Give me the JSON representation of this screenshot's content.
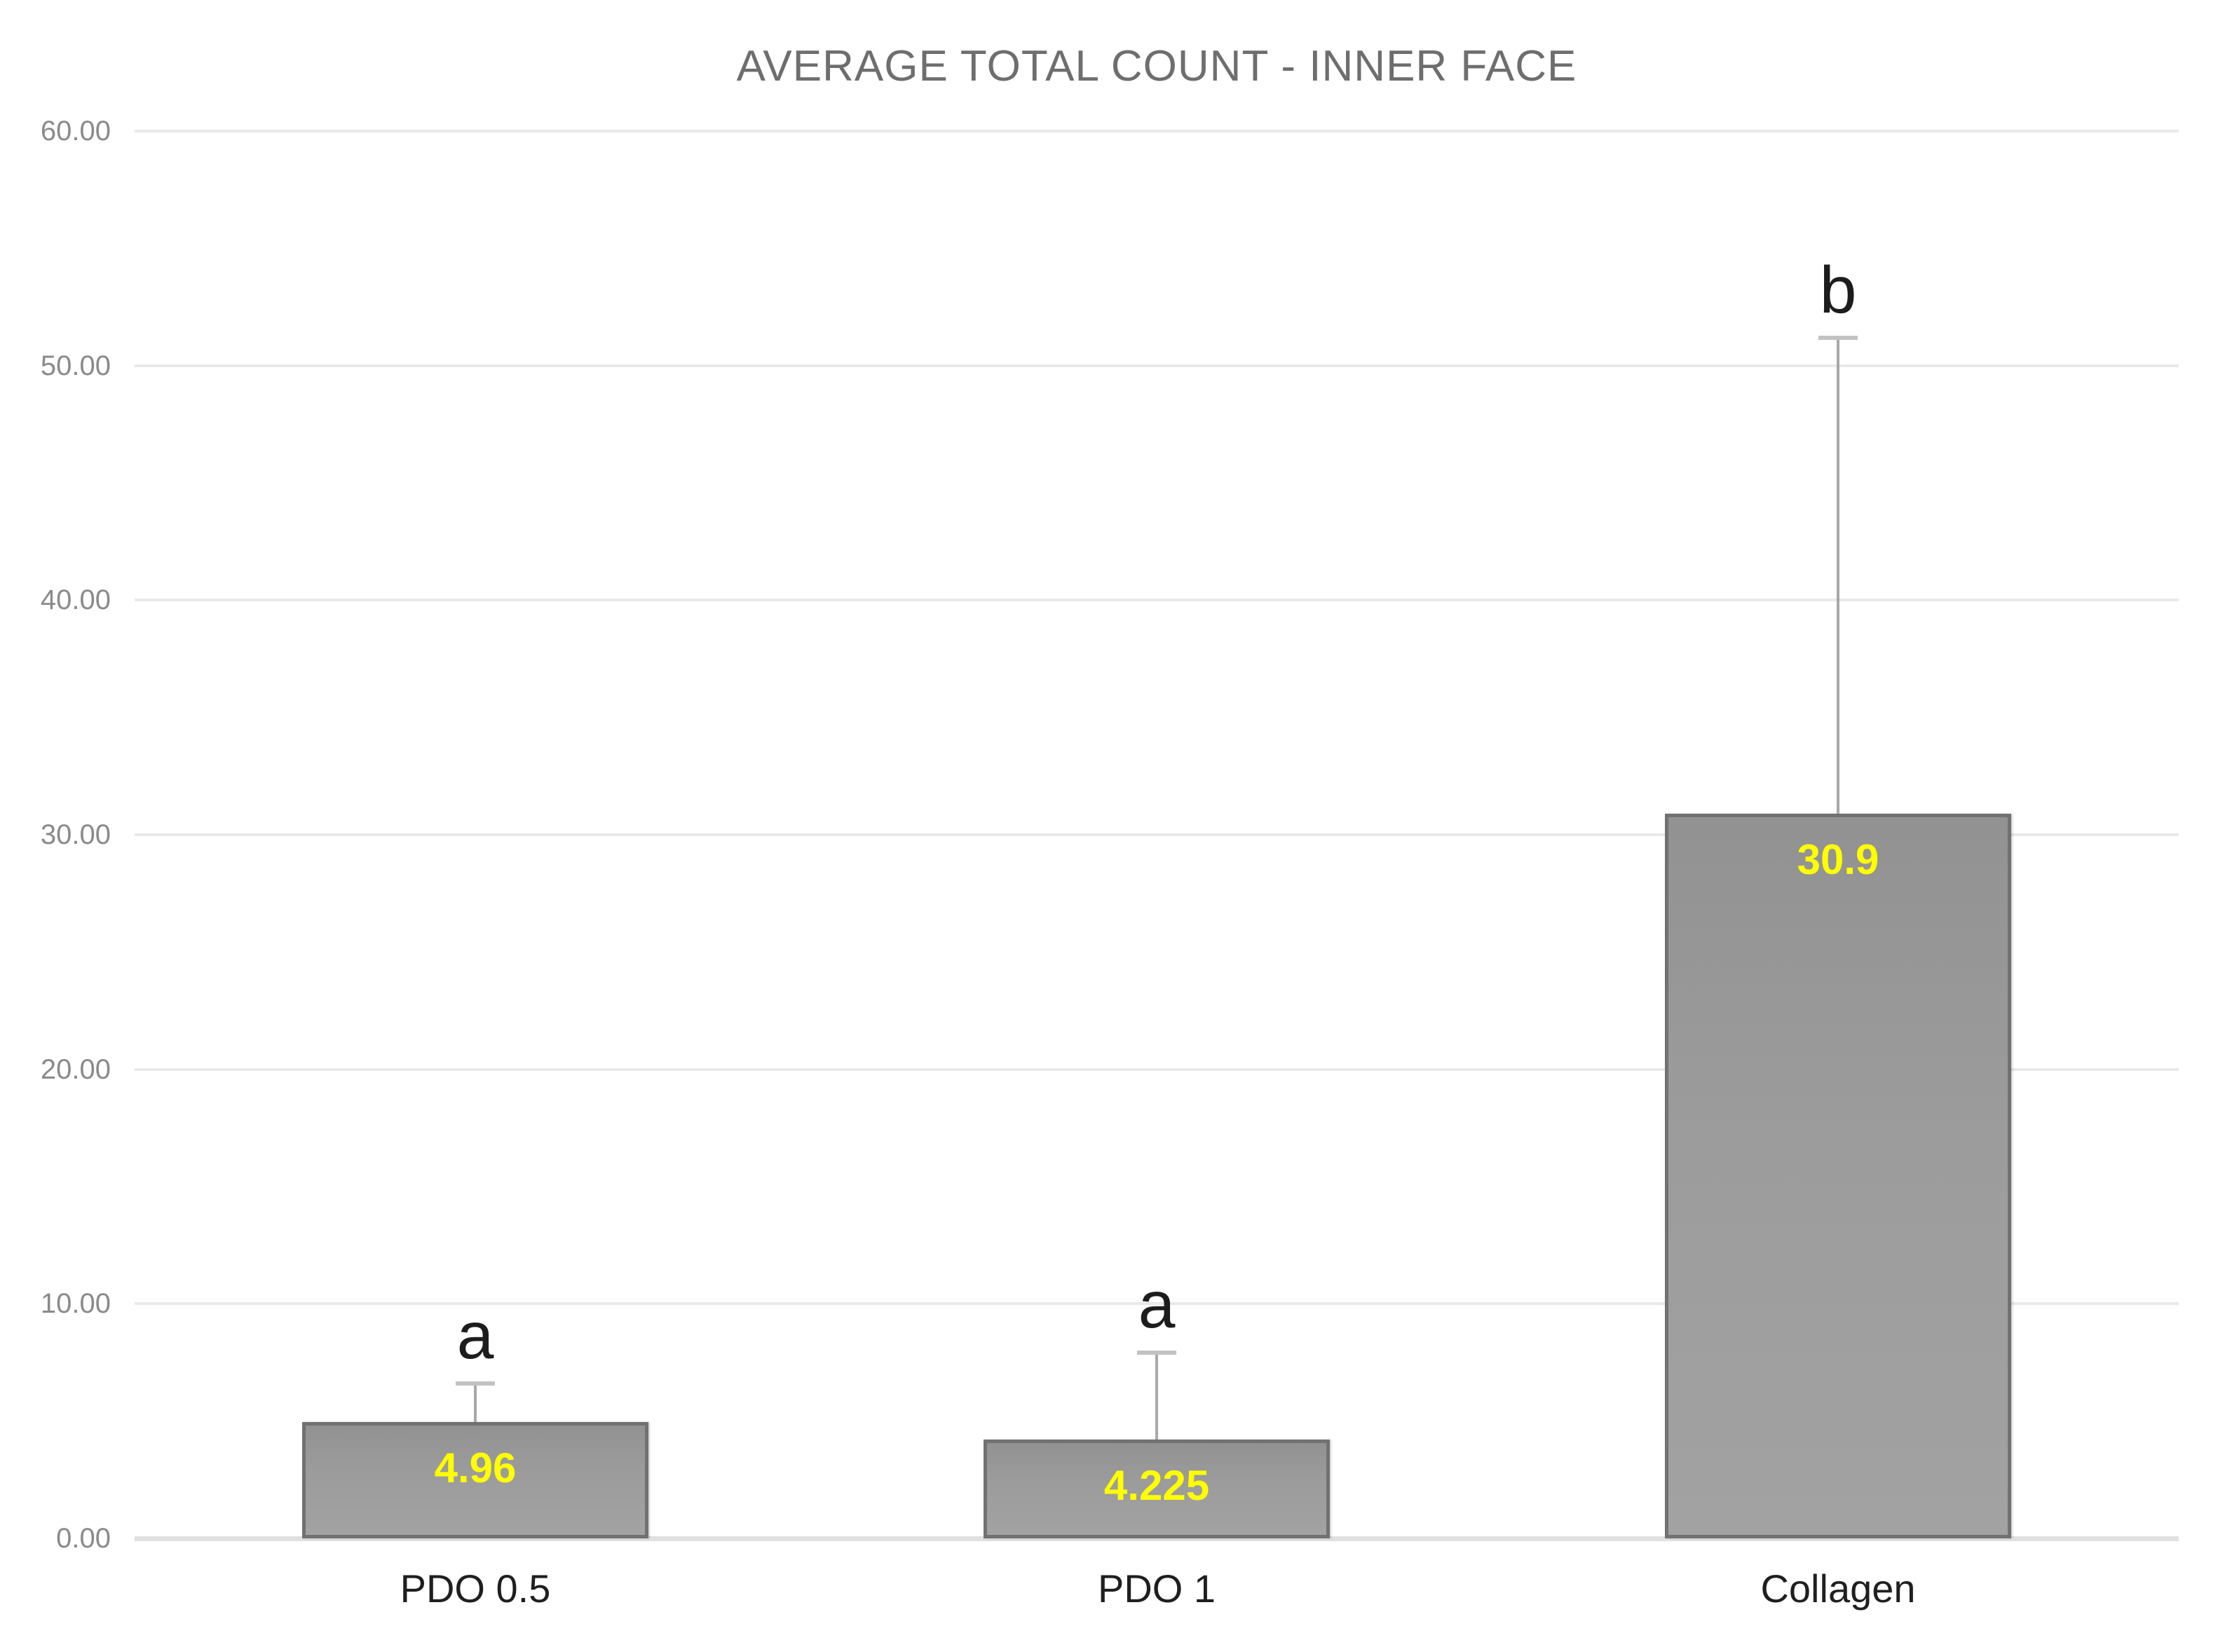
{
  "chart_data": {
    "type": "bar",
    "title": "AVERAGE TOTAL COUNT - INNER FACE",
    "xlabel": "",
    "ylabel": "",
    "categories": [
      "PDO 0.5",
      "PDO 1",
      "Collagen"
    ],
    "values": [
      4.96,
      4.225,
      30.9
    ],
    "value_labels": [
      "4.96",
      "4.225",
      "30.9"
    ],
    "error_plus": [
      1.64,
      3.68,
      20.3
    ],
    "sig_letters": [
      "a",
      "a",
      "b"
    ],
    "ylim": [
      0,
      60
    ],
    "yticks": [
      {
        "value": 0,
        "label": "0.00"
      },
      {
        "value": 10,
        "label": "10.00"
      },
      {
        "value": 20,
        "label": "20.00"
      },
      {
        "value": 30,
        "label": "30.00"
      },
      {
        "value": 40,
        "label": "40.00"
      },
      {
        "value": 50,
        "label": "50.00"
      },
      {
        "value": 60,
        "label": "60.00"
      }
    ],
    "grid": true,
    "legend": null,
    "colors": {
      "background": "#ffffff",
      "bar_fill": "#9c9c9c",
      "bar_border": "#717171",
      "value_label": "#ffff00",
      "error_bar": "#a8a8a8",
      "sig_letter": "#1c1c1c",
      "title_text": "#6e6e6e",
      "tick_text": "#8a8a8a",
      "category_text": "#1f1f1f",
      "gridline": "#e9e9e9"
    }
  }
}
